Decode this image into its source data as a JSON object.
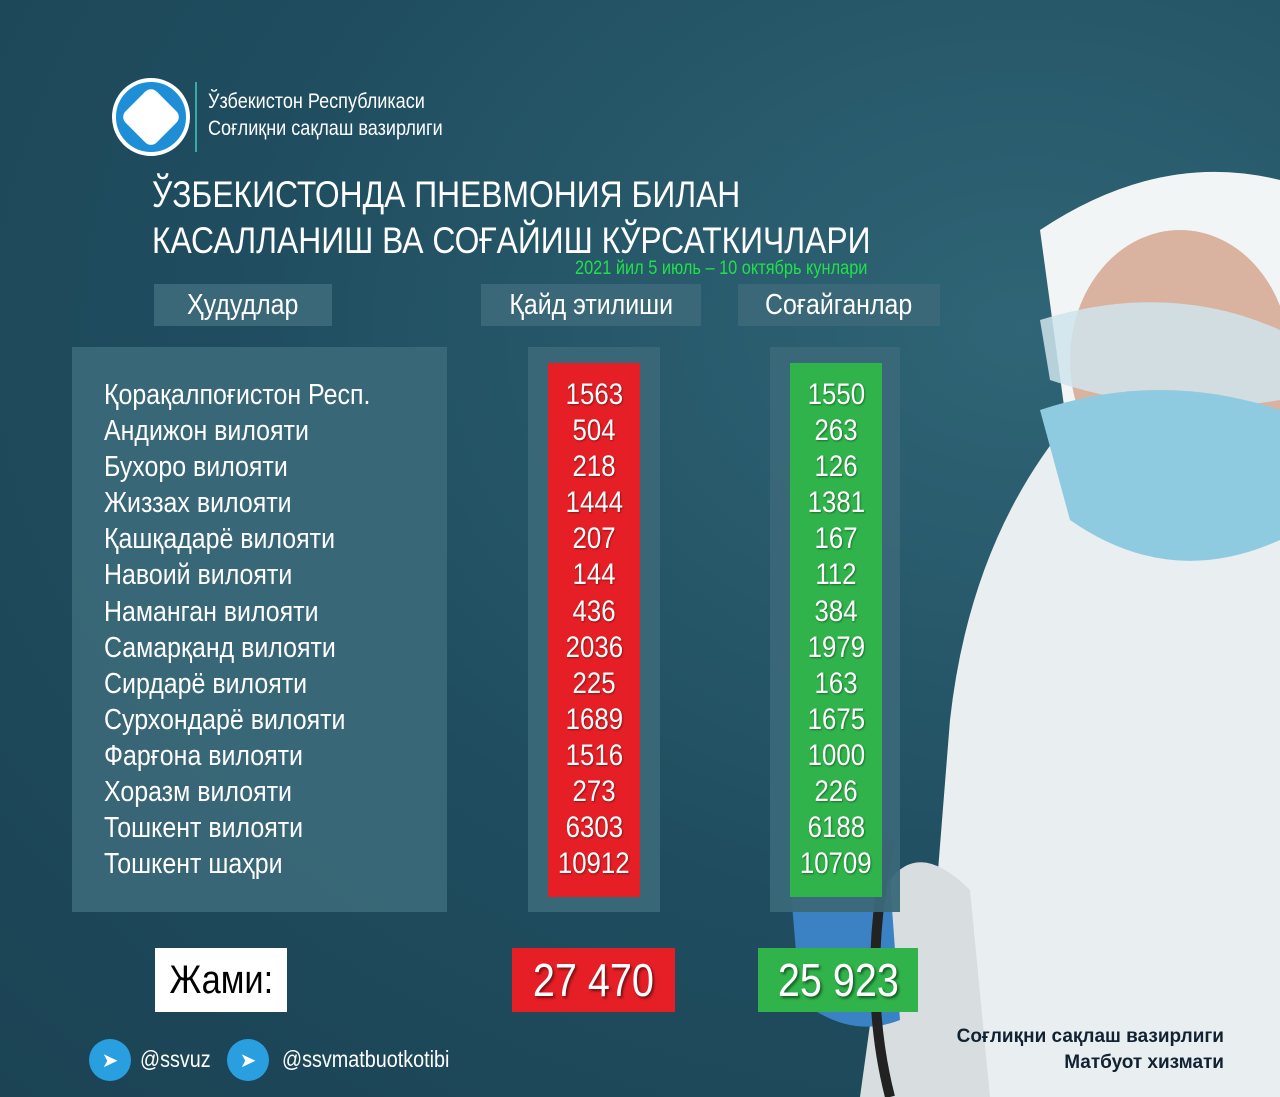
{
  "org": {
    "line1": "Ўзбекистон Республикаси",
    "line2": "Соғлиқни сақлаш вазирлиги"
  },
  "title": {
    "line1": "ЎЗБЕКИСТОНДА ПНЕВМОНИЯ БИЛАН",
    "line2": "КАСАЛЛАНИШ ВА СОҒАЙИШ КЎРСАТКИЧЛАРИ",
    "date": "2021 йил 5 июль – 10 октябрь кунлари"
  },
  "headers": {
    "regions": "Ҳудудлар",
    "registered": "Қайд этилиши",
    "recovered": "Соғайганлар"
  },
  "rows": [
    {
      "region": "Қорақалпоғистон Респ.",
      "registered": "1563",
      "recovered": "1550"
    },
    {
      "region": "Андижон вилояти",
      "registered": "504",
      "recovered": "263"
    },
    {
      "region": "Бухоро вилояти",
      "registered": "218",
      "recovered": "126"
    },
    {
      "region": "Жиззах вилояти",
      "registered": "1444",
      "recovered": "1381"
    },
    {
      "region": "Қашқадарё вилояти",
      "registered": "207",
      "recovered": "167"
    },
    {
      "region": "Навоий вилояти",
      "registered": "144",
      "recovered": "112"
    },
    {
      "region": "Наманган вилояти",
      "registered": "436",
      "recovered": "384"
    },
    {
      "region": "Самарқанд вилояти",
      "registered": "2036",
      "recovered": "1979"
    },
    {
      "region": "Сирдарё вилояти",
      "registered": "225",
      "recovered": "163"
    },
    {
      "region": "Сурхондарё вилояти",
      "registered": "1689",
      "recovered": "1675"
    },
    {
      "region": "Фарғона вилояти",
      "registered": "1516",
      "recovered": "1000"
    },
    {
      "region": "Хоразм вилояти",
      "registered": "273",
      "recovered": "226"
    },
    {
      "region": "Тошкент вилояти",
      "registered": "6303",
      "recovered": "6188"
    },
    {
      "region": "Тошкент шаҳри",
      "registered": "10912",
      "recovered": "10709"
    }
  ],
  "totals": {
    "label": "Жами:",
    "registered": "27 470",
    "recovered": "25 923"
  },
  "social": {
    "handle1": "@ssvuz",
    "handle2": "@ssvmatbuotkotibi",
    "icon": "telegram-icon"
  },
  "credit": {
    "line1": "Соғлиқни сақлаш вазирлиги",
    "line2": "Матбуот хизмати"
  },
  "colors": {
    "background": "#1f4d5f",
    "registered": "#e51f25",
    "recovered": "#2fb34a",
    "date": "#22e04a"
  }
}
